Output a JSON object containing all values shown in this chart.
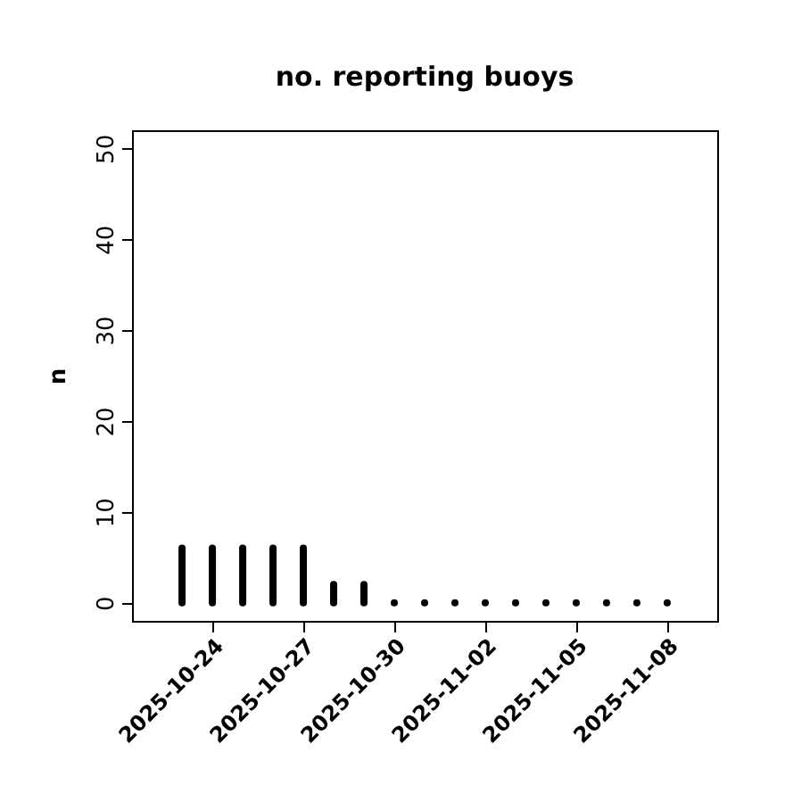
{
  "chart_data": {
    "type": "bar",
    "title": "no. reporting buoys",
    "ylabel": "n",
    "x": [
      "2025-10-23",
      "2025-10-24",
      "2025-10-25",
      "2025-10-26",
      "2025-10-27",
      "2025-10-28",
      "2025-10-29",
      "2025-10-30",
      "2025-10-31",
      "2025-11-01",
      "2025-11-02",
      "2025-11-03",
      "2025-11-04",
      "2025-11-05",
      "2025-11-06",
      "2025-11-07",
      "2025-11-08"
    ],
    "values": [
      6,
      6,
      6,
      6,
      6,
      2,
      2,
      0,
      0,
      0,
      0,
      0,
      0,
      0,
      0,
      0,
      0
    ],
    "color": "#000000",
    "xlim": [
      "2025-10-21T08:24",
      "2025-11-09T15:36"
    ],
    "xticks": [
      "2025-10-24",
      "2025-10-27",
      "2025-10-30",
      "2025-11-02",
      "2025-11-05",
      "2025-11-08"
    ],
    "ylim": [
      -2,
      52
    ],
    "yticks": [
      0,
      10,
      20,
      30,
      40,
      50
    ],
    "grid": false
  }
}
